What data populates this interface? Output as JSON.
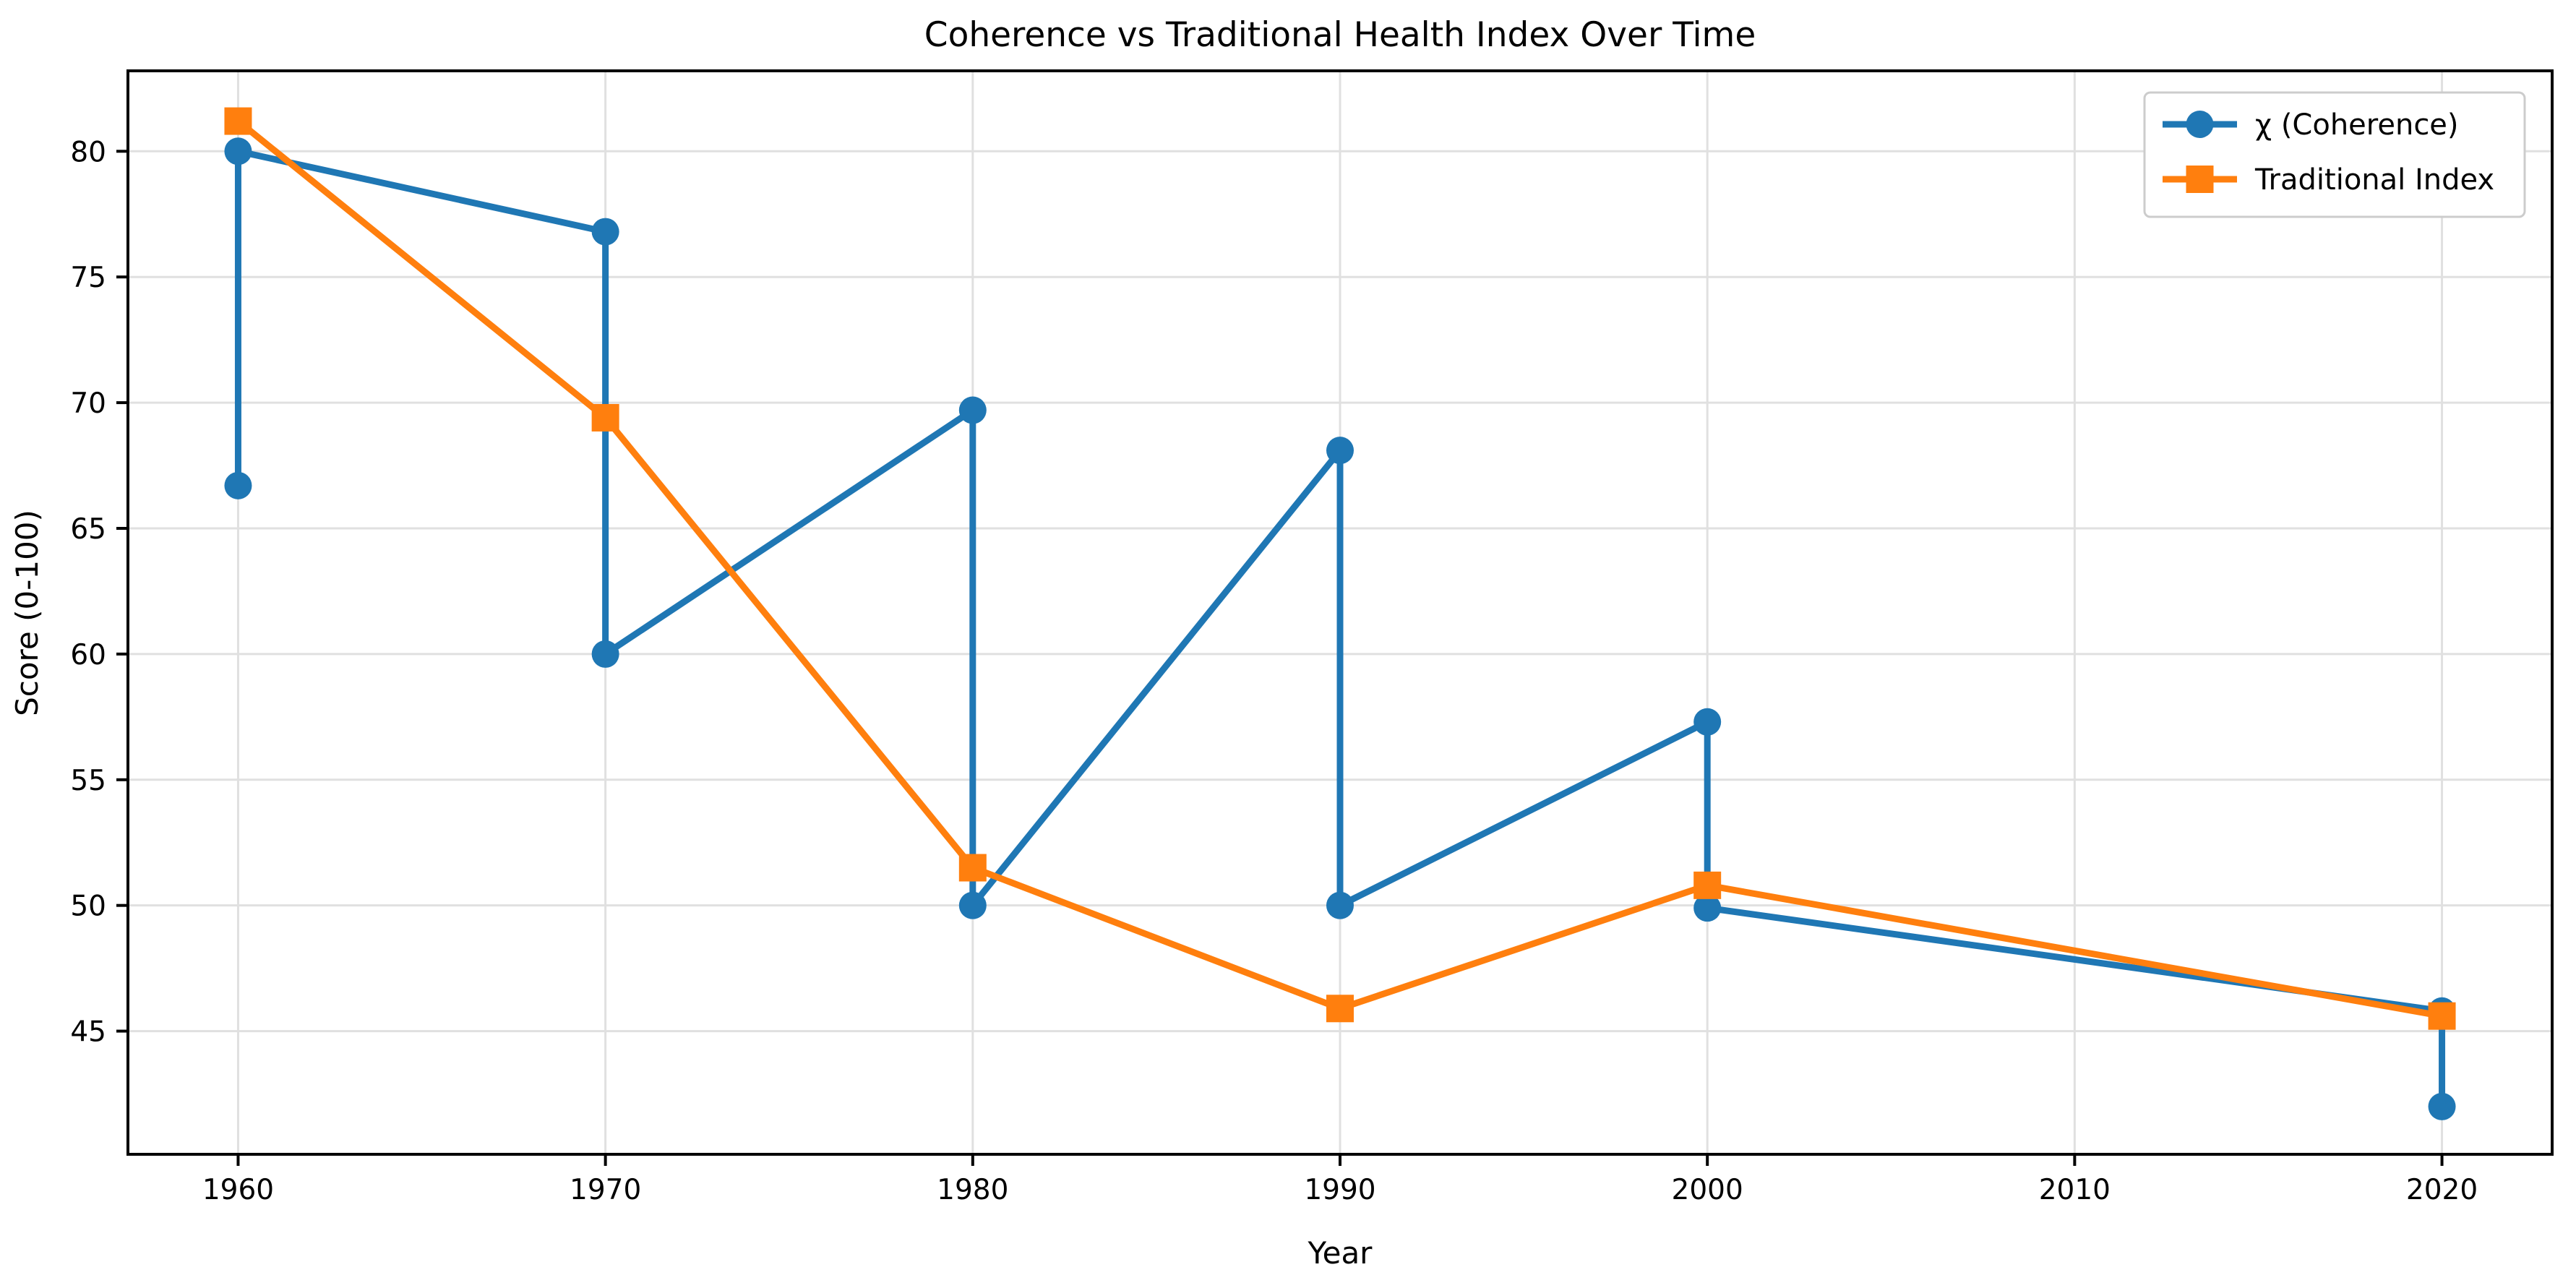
{
  "chart_data": {
    "type": "line",
    "title": "Coherence vs Traditional Health Index Over Time",
    "xlabel": "Year",
    "ylabel": "Score (0-100)",
    "xlim": [
      1957,
      2023
    ],
    "ylim": [
      40.1,
      83.2
    ],
    "x_ticks": [
      1960,
      1970,
      1980,
      1990,
      2000,
      2010,
      2020
    ],
    "y_ticks": [
      45,
      50,
      55,
      60,
      65,
      70,
      75,
      80
    ],
    "grid": true,
    "grid_color": "#e0e0e0",
    "background_color": "#ffffff",
    "spine_color": "#000000",
    "legend_position": "upper right",
    "series": [
      {
        "name": "χ (Coherence)",
        "color": "#1f77b4",
        "marker": "circle",
        "points": [
          [
            1960,
            66.7
          ],
          [
            1960,
            80.0
          ],
          [
            1970,
            76.8
          ],
          [
            1970,
            60.0
          ],
          [
            1980,
            69.7
          ],
          [
            1980,
            50.0
          ],
          [
            1990,
            68.1
          ],
          [
            1990,
            50.0
          ],
          [
            2000,
            57.3
          ],
          [
            2000,
            49.9
          ],
          [
            2020,
            45.8
          ],
          [
            2020,
            42.0
          ]
        ]
      },
      {
        "name": "Traditional Index",
        "color": "#ff7f0e",
        "marker": "square",
        "points": [
          [
            1960,
            81.2
          ],
          [
            1970,
            69.4
          ],
          [
            1980,
            51.5
          ],
          [
            1990,
            45.9
          ],
          [
            2000,
            50.8
          ],
          [
            2020,
            45.6
          ]
        ]
      }
    ]
  }
}
